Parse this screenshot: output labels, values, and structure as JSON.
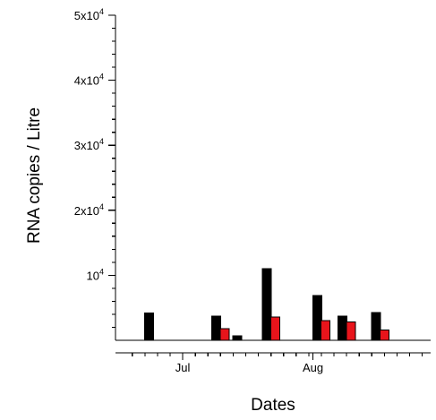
{
  "chart_data": {
    "type": "bar",
    "title": "",
    "xlabel": "Dates",
    "ylabel": "RNA copies / Litre",
    "ylim": [
      0,
      50000
    ],
    "y_ticks": [
      {
        "value": 10000,
        "mantissa": "",
        "base": "10",
        "exp": "4"
      },
      {
        "value": 20000,
        "mantissa": "2x",
        "base": "10",
        "exp": "4"
      },
      {
        "value": 30000,
        "mantissa": "3x",
        "base": "10",
        "exp": "4"
      },
      {
        "value": 40000,
        "mantissa": "4x",
        "base": "10",
        "exp": "4"
      },
      {
        "value": 50000,
        "mantissa": "5x",
        "base": "10",
        "exp": "4"
      }
    ],
    "xlim": [
      "2020-06-15",
      "2020-08-29"
    ],
    "x_tick_labels": [
      {
        "date": "2020-07-01",
        "label": "Jul"
      },
      {
        "date": "2020-08-01",
        "label": "Aug"
      }
    ],
    "grid": false,
    "legend": "none",
    "series": [
      {
        "color": "#000000",
        "points": [
          {
            "date": "2020-06-23",
            "value": 4200
          },
          {
            "date": "2020-07-09",
            "value": 3700
          },
          {
            "date": "2020-07-14",
            "value": 700
          },
          {
            "date": "2020-07-21",
            "value": 11000
          },
          {
            "date": "2020-08-02",
            "value": 6900
          },
          {
            "date": "2020-08-08",
            "value": 3700
          },
          {
            "date": "2020-08-16",
            "value": 4300
          }
        ]
      },
      {
        "color": "#e8141b",
        "points": [
          {
            "date": "2020-07-11",
            "value": 1800
          },
          {
            "date": "2020-07-23",
            "value": 3600
          },
          {
            "date": "2020-08-04",
            "value": 3000
          },
          {
            "date": "2020-08-10",
            "value": 2800
          },
          {
            "date": "2020-08-18",
            "value": 1600
          }
        ]
      }
    ]
  }
}
